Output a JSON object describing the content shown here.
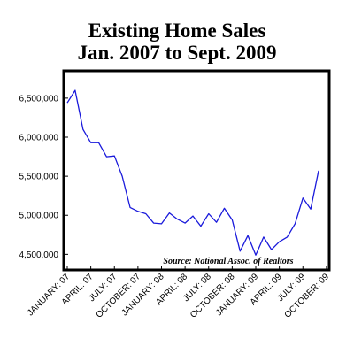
{
  "chart_data": {
    "type": "line",
    "title": [
      "Existing Home Sales",
      "Jan. 2007 to Sept. 2009"
    ],
    "xlabel": "",
    "ylabel": "",
    "source": "Source: National Assoc. of Realtors",
    "ylim": [
      4300000,
      6850000
    ],
    "yticks": [
      4500000,
      5000000,
      5500000,
      6000000,
      6500000
    ],
    "ytick_labels": [
      "4,500,000",
      "5,000,000",
      "5,500,000",
      "6,000,000",
      "6,500,000"
    ],
    "xtick_labels": [
      "JANUARY: 07",
      "APRIL: 07",
      "JULY: 07",
      "OCTOBER: 07",
      "JANUARY: 08",
      "APRIL: 08",
      "JULY: 08",
      "OCTOBER: 08",
      "JANUARY: 09",
      "APRIL: 09",
      "JULY: 09",
      "OCTOBER: 09"
    ],
    "xtick_months": [
      0,
      3,
      6,
      9,
      12,
      15,
      18,
      21,
      24,
      27,
      30,
      33
    ],
    "x": [
      "2007-01",
      "2007-02",
      "2007-03",
      "2007-04",
      "2007-05",
      "2007-06",
      "2007-07",
      "2007-08",
      "2007-09",
      "2007-10",
      "2007-11",
      "2007-12",
      "2008-01",
      "2008-02",
      "2008-03",
      "2008-04",
      "2008-05",
      "2008-06",
      "2008-07",
      "2008-08",
      "2008-09",
      "2008-10",
      "2008-11",
      "2008-12",
      "2009-01",
      "2009-02",
      "2009-03",
      "2009-04",
      "2009-05",
      "2009-06",
      "2009-07",
      "2009-08",
      "2009-09"
    ],
    "series": [
      {
        "values": [
          6440000,
          6600000,
          6100000,
          5930000,
          5930000,
          5750000,
          5760000,
          5500000,
          5100000,
          5050000,
          5020000,
          4900000,
          4890000,
          5030000,
          4950000,
          4900000,
          4990000,
          4860000,
          5020000,
          4910000,
          5090000,
          4940000,
          4540000,
          4740000,
          4490000,
          4720000,
          4560000,
          4660000,
          4720000,
          4890000,
          5220000,
          5080000,
          5570000
        ]
      }
    ],
    "grid": false,
    "line_color": "#1a1adb"
  }
}
